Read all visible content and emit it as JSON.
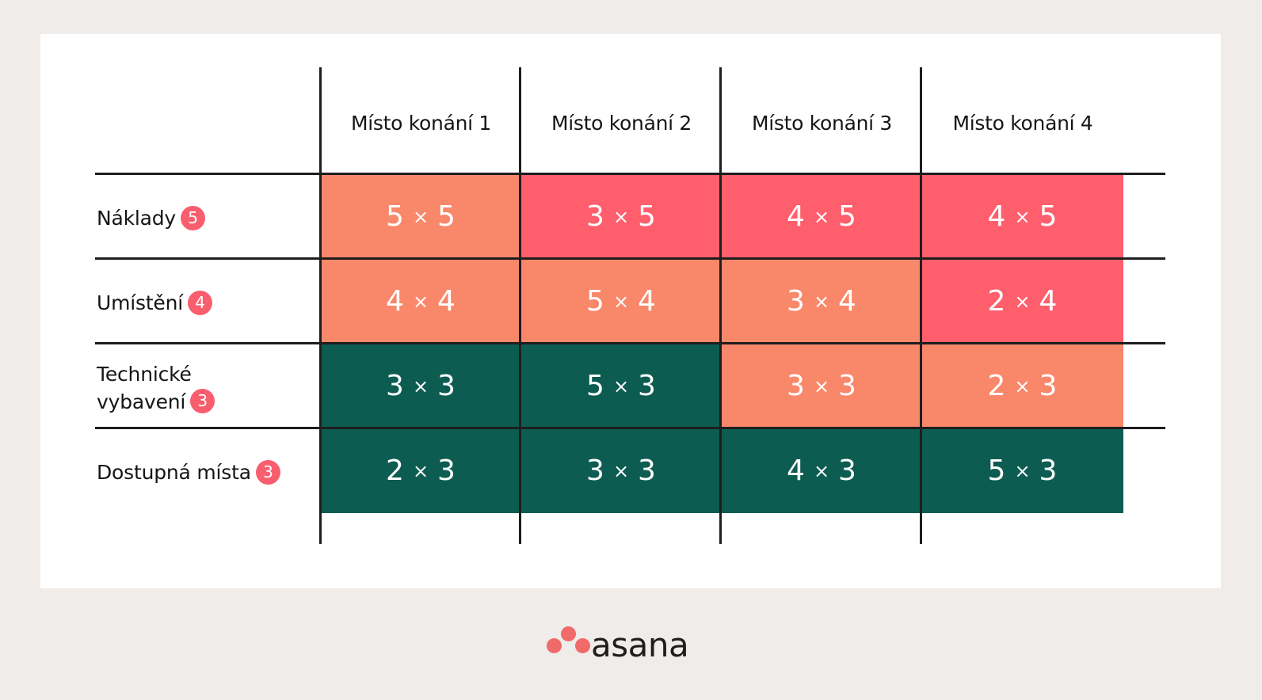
{
  "colors": {
    "background": "#efecea",
    "card": "#ffffff",
    "salmon": "#f9876a",
    "red": "#ff5e6c",
    "green": "#0d5c51",
    "badge": "#f85e6e",
    "logo": "#f06a6a",
    "line": "#1e1e1e"
  },
  "columns": [
    "Místo konání 1",
    "Místo konání 2",
    "Místo konání 3",
    "Místo konání 4"
  ],
  "rows": [
    {
      "label_lines": [
        "Náklady"
      ],
      "weight": "5",
      "cells": [
        {
          "a": "5",
          "b": "5",
          "color": "salmon"
        },
        {
          "a": "3",
          "b": "5",
          "color": "red"
        },
        {
          "a": "4",
          "b": "5",
          "color": "red"
        },
        {
          "a": "4",
          "b": "5",
          "color": "red"
        }
      ]
    },
    {
      "label_lines": [
        "Umístění"
      ],
      "weight": "4",
      "cells": [
        {
          "a": "4",
          "b": "4",
          "color": "salmon"
        },
        {
          "a": "5",
          "b": "4",
          "color": "salmon"
        },
        {
          "a": "3",
          "b": "4",
          "color": "salmon"
        },
        {
          "a": "2",
          "b": "4",
          "color": "red"
        }
      ]
    },
    {
      "label_lines": [
        "Technické",
        "vybavení"
      ],
      "weight": "3",
      "cells": [
        {
          "a": "3",
          "b": "3",
          "color": "green"
        },
        {
          "a": "5",
          "b": "3",
          "color": "green"
        },
        {
          "a": "3",
          "b": "3",
          "color": "salmon"
        },
        {
          "a": "2",
          "b": "3",
          "color": "salmon"
        }
      ]
    },
    {
      "label_lines": [
        "Dostupná místa"
      ],
      "weight": "3",
      "cells": [
        {
          "a": "2",
          "b": "3",
          "color": "green"
        },
        {
          "a": "3",
          "b": "3",
          "color": "green"
        },
        {
          "a": "4",
          "b": "3",
          "color": "green"
        },
        {
          "a": "5",
          "b": "3",
          "color": "green"
        }
      ]
    }
  ],
  "multiply_sign": "×",
  "logo": {
    "text": "asana",
    "icon": "asana-three-dots-icon"
  }
}
